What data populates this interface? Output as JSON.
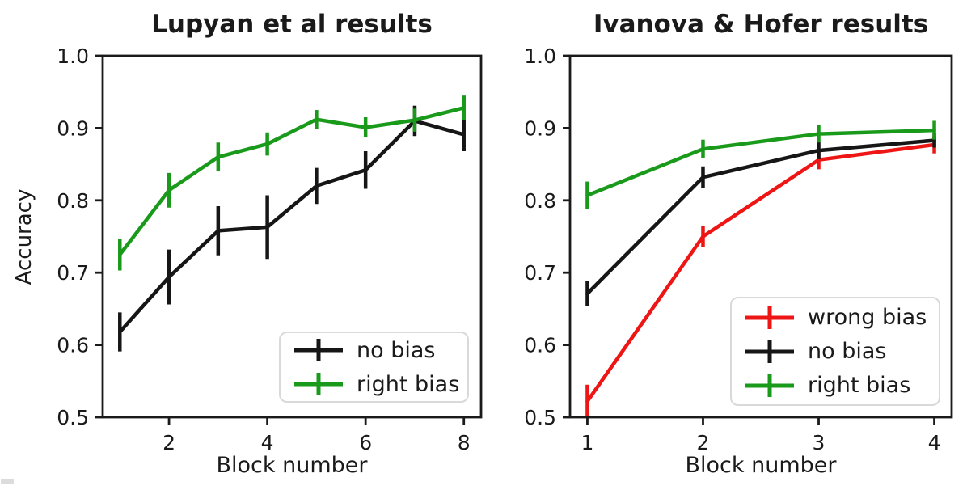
{
  "figure": {
    "background": "#ffffff",
    "text_color": "#1a1a1a",
    "spine_color": "#1a1a1a",
    "legend_border_color": "#d9d9d9"
  },
  "chart_data": [
    {
      "type": "line",
      "title": "Lupyan et al results",
      "xlabel": "Block number",
      "ylabel": "Accuracy",
      "x": [
        1,
        2,
        3,
        4,
        5,
        6,
        7,
        8
      ],
      "xticks": [
        2,
        4,
        6,
        8
      ],
      "yticks": [
        0.5,
        0.6,
        0.7,
        0.8,
        0.9,
        1.0
      ],
      "xlim": [
        0.65,
        8.35
      ],
      "ylim": [
        0.5,
        1.0
      ],
      "grid": false,
      "legend_position": "lower right",
      "series": [
        {
          "name": "no bias",
          "color": "#161616",
          "values": [
            0.618,
            0.694,
            0.758,
            0.763,
            0.82,
            0.842,
            0.91,
            0.891
          ],
          "yerr": [
            0.027,
            0.038,
            0.034,
            0.044,
            0.025,
            0.026,
            0.021,
            0.023
          ]
        },
        {
          "name": "right bias",
          "color": "#1a9a1a",
          "values": [
            0.725,
            0.814,
            0.86,
            0.878,
            0.912,
            0.901,
            0.911,
            0.928
          ],
          "yerr": [
            0.022,
            0.024,
            0.02,
            0.016,
            0.013,
            0.014,
            0.016,
            0.017
          ]
        }
      ]
    },
    {
      "type": "line",
      "title": "Ivanova & Hofer results",
      "xlabel": "Block number",
      "ylabel": "",
      "x": [
        1,
        2,
        3,
        4
      ],
      "xticks": [
        1,
        2,
        3,
        4
      ],
      "yticks": [
        0.5,
        0.6,
        0.7,
        0.8,
        0.9,
        1.0
      ],
      "xlim": [
        0.85,
        4.15
      ],
      "ylim": [
        0.5,
        1.0
      ],
      "grid": false,
      "legend_position": "center right",
      "series": [
        {
          "name": "wrong bias",
          "color": "#ee1515",
          "values": [
            0.522,
            0.75,
            0.856,
            0.877
          ],
          "yerr": [
            0.023,
            0.015,
            0.013,
            0.012
          ]
        },
        {
          "name": "no bias",
          "color": "#161616",
          "values": [
            0.671,
            0.832,
            0.869,
            0.883
          ],
          "yerr": [
            0.017,
            0.015,
            0.012,
            0.01
          ]
        },
        {
          "name": "right bias",
          "color": "#1a9a1a",
          "values": [
            0.807,
            0.871,
            0.892,
            0.897
          ],
          "yerr": [
            0.019,
            0.013,
            0.012,
            0.013
          ]
        }
      ]
    }
  ]
}
